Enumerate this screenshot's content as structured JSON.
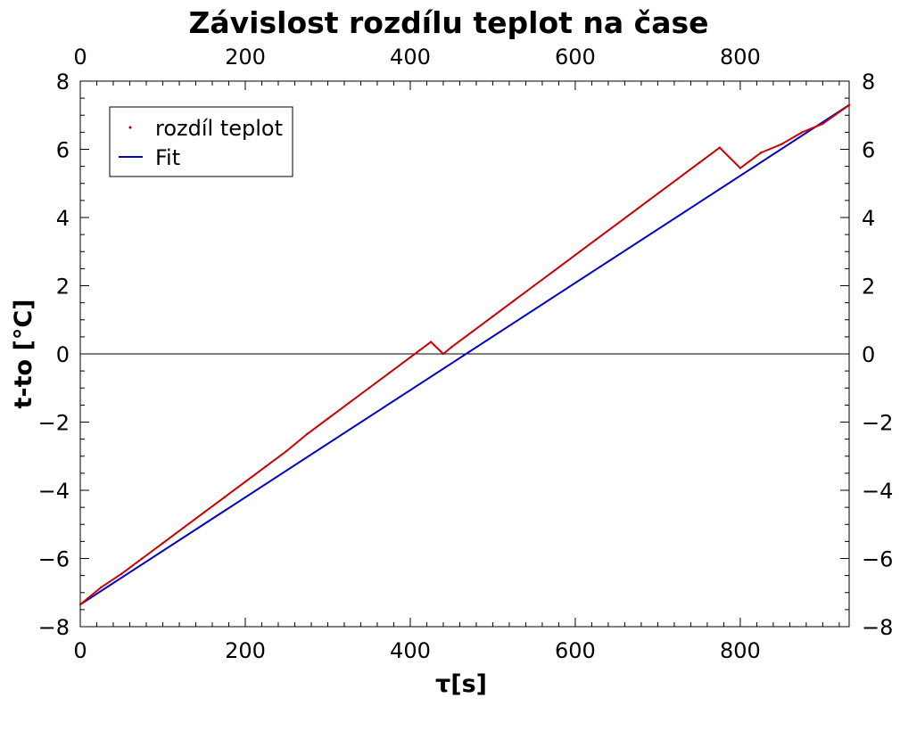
{
  "chart_data": {
    "type": "line",
    "title": "Závislost rozdílu teplot na čase",
    "xlabel": "τ[s]",
    "ylabel": "t-to [°C]",
    "xlim": [
      0,
      932
    ],
    "ylim": [
      -8,
      8
    ],
    "xticks": [
      0,
      200,
      400,
      600,
      800
    ],
    "xtick_labels": [
      "0",
      "200",
      "400",
      "600",
      "800"
    ],
    "yticks": [
      -8,
      -6,
      -4,
      -2,
      0,
      2,
      4,
      6,
      8
    ],
    "ytick_labels": [
      "−8",
      "−6",
      "−4",
      "−2",
      "0",
      "2",
      "4",
      "6",
      "8"
    ],
    "grid": false,
    "zero_line": true,
    "top_axis_labels": true,
    "right_axis_labels": true,
    "legend": {
      "position": "top-left",
      "entries": [
        {
          "label": "rozdíl teplot",
          "marker": "dot",
          "color": "#8b0000"
        },
        {
          "label": "Fit",
          "marker": "line",
          "color": "#0000cc"
        }
      ]
    },
    "series": [
      {
        "name": "rozdíl teplot",
        "color": "#cc0000",
        "x": [
          0,
          25,
          50,
          75,
          100,
          125,
          150,
          175,
          200,
          225,
          250,
          275,
          300,
          325,
          350,
          375,
          400,
          425,
          440,
          450,
          475,
          500,
          525,
          550,
          575,
          600,
          625,
          650,
          675,
          700,
          725,
          750,
          775,
          800,
          825,
          850,
          875,
          900,
          932
        ],
        "y": [
          -7.35,
          -6.85,
          -6.45,
          -6.0,
          -5.55,
          -5.1,
          -4.65,
          -4.2,
          -3.75,
          -3.3,
          -2.85,
          -2.35,
          -1.9,
          -1.45,
          -1.0,
          -0.55,
          -0.1,
          0.35,
          0.0,
          0.2,
          0.65,
          1.1,
          1.55,
          2.0,
          2.45,
          2.9,
          3.35,
          3.8,
          4.25,
          4.7,
          5.15,
          5.6,
          6.05,
          5.45,
          5.9,
          6.15,
          6.5,
          6.75,
          7.3
        ]
      },
      {
        "name": "Fit",
        "color": "#0000cc",
        "x": [
          0,
          932
        ],
        "y": [
          -7.35,
          7.3
        ]
      }
    ]
  }
}
